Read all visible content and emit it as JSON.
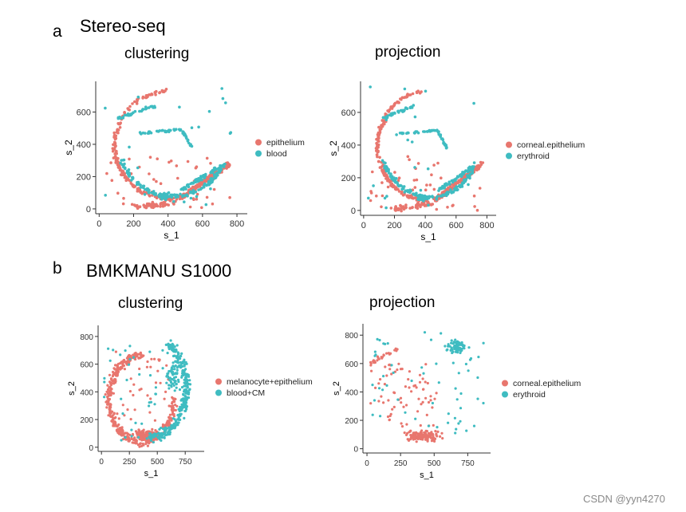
{
  "sections": [
    {
      "letter": "a",
      "title": "Stereo-seq"
    },
    {
      "letter": "b",
      "title": "BMKMANU S1000"
    }
  ],
  "watermark": "CSDN @yyn4270",
  "colors": {
    "red": "#e8766e",
    "teal": "#3fbcc1",
    "axis": "#333333"
  },
  "chart_data": [
    {
      "type": "scatter",
      "title": "clustering",
      "xlabel": "s_1",
      "ylabel": "s_2",
      "xlim": [
        -20,
        860
      ],
      "ylim": [
        -30,
        790
      ],
      "xticks": [
        0,
        200,
        400,
        600,
        800
      ],
      "yticks": [
        0,
        200,
        400,
        600
      ],
      "legend_position": "right",
      "series": [
        {
          "name": "epithelium",
          "color": "#e8766e"
        },
        {
          "name": "blood",
          "color": "#3fbcc1"
        }
      ]
    },
    {
      "type": "scatter",
      "title": "projection",
      "xlabel": "s_1",
      "ylabel": "s_2",
      "xlim": [
        -20,
        860
      ],
      "ylim": [
        -30,
        790
      ],
      "xticks": [
        0,
        200,
        400,
        600,
        800
      ],
      "yticks": [
        0,
        200,
        400,
        600
      ],
      "legend_position": "right",
      "series": [
        {
          "name": "corneal.epithelium",
          "color": "#e8766e"
        },
        {
          "name": "erythroid",
          "color": "#3fbcc1"
        }
      ]
    },
    {
      "type": "scatter",
      "title": "clustering",
      "xlabel": "s_1",
      "ylabel": "s_2",
      "xlim": [
        -30,
        920
      ],
      "ylim": [
        -30,
        880
      ],
      "xticks": [
        0,
        250,
        500,
        750
      ],
      "yticks": [
        0,
        200,
        400,
        600,
        800
      ],
      "legend_position": "right",
      "series": [
        {
          "name": "melanocyte+epithelium",
          "color": "#e8766e"
        },
        {
          "name": "blood+CM",
          "color": "#3fbcc1"
        }
      ]
    },
    {
      "type": "scatter",
      "title": "projection",
      "xlabel": "s_1",
      "ylabel": "s_2",
      "xlim": [
        -30,
        920
      ],
      "ylim": [
        -30,
        880
      ],
      "xticks": [
        0,
        250,
        500,
        750
      ],
      "yticks": [
        0,
        200,
        400,
        600,
        800
      ],
      "legend_position": "right",
      "series": [
        {
          "name": "corneal.epithelium",
          "color": "#e8766e"
        },
        {
          "name": "erythroid",
          "color": "#3fbcc1"
        }
      ]
    }
  ]
}
